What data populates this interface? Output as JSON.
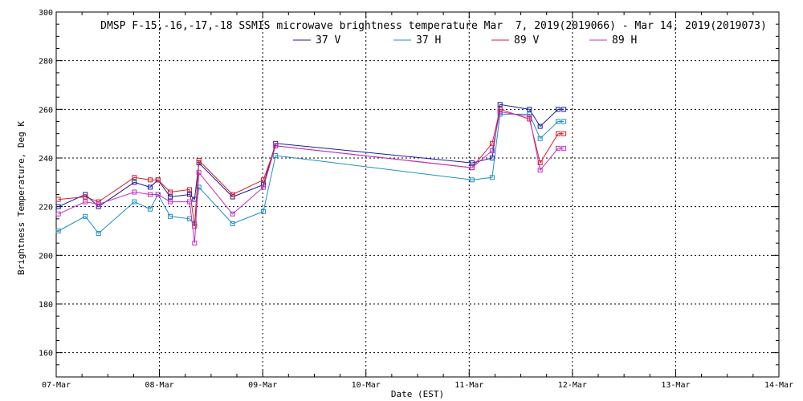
{
  "chart_data": {
    "type": "line",
    "title": "DMSP F-15,-16,-17,-18 SSMIS microwave brightness temperature Mar  7, 2019(2019066) - Mar 14, 2019(2019073)",
    "xlabel": "Date (EST)",
    "ylabel": "Brightness Temperature, Deg K",
    "x_tick_labels": [
      "07-Mar",
      "08-Mar",
      "09-Mar",
      "10-Mar",
      "11-Mar",
      "12-Mar",
      "13-Mar",
      "14-Mar"
    ],
    "y_tick_labels": [
      "160",
      "180",
      "200",
      "220",
      "240",
      "260",
      "280",
      "300"
    ],
    "xlim": [
      "2019-03-07T00:00",
      "2019-03-14T00:00"
    ],
    "ylim": [
      150,
      300
    ],
    "grid": true,
    "legend_position": "top-center",
    "x": [
      "2019-03-07T00:30",
      "2019-03-07T06:45",
      "2019-03-07T09:50",
      "2019-03-07T18:10",
      "2019-03-07T21:50",
      "2019-03-07T23:40",
      "2019-03-08T02:30",
      "2019-03-08T07:00",
      "2019-03-08T08:10",
      "2019-03-08T09:10",
      "2019-03-08T17:00",
      "2019-03-09T00:10",
      "2019-03-09T03:00",
      "2019-03-11T00:40",
      "2019-03-11T05:20",
      "2019-03-11T07:10",
      "2019-03-11T14:00",
      "2019-03-11T16:30",
      "2019-03-11T20:40",
      "2019-03-11T22:00"
    ],
    "series": [
      {
        "name": "37 V",
        "color": "#1a1aa6",
        "values": [
          220,
          225,
          220,
          230,
          228,
          231,
          224,
          225,
          223,
          238,
          224,
          229,
          246,
          238,
          240,
          262,
          260,
          253,
          260,
          260
        ]
      },
      {
        "name": "37 H",
        "color": "#1e8fc8",
        "values": [
          210,
          216,
          209,
          222,
          219,
          225,
          216,
          215,
          213,
          228,
          213,
          218,
          241,
          231,
          232,
          258,
          258,
          248,
          255,
          255
        ]
      },
      {
        "name": "89 V",
        "color": "#d0202a",
        "values": [
          223,
          224,
          222,
          232,
          231,
          231,
          226,
          227,
          212,
          239,
          225,
          231,
          245,
          236,
          246,
          260,
          256,
          238,
          250,
          250
        ]
      },
      {
        "name": "89 H",
        "color": "#c030c0",
        "values": [
          217,
          222,
          221,
          226,
          225,
          225,
          222,
          222,
          205,
          234,
          217,
          228,
          245,
          236,
          243,
          259,
          257,
          235,
          244,
          244
        ]
      }
    ]
  }
}
